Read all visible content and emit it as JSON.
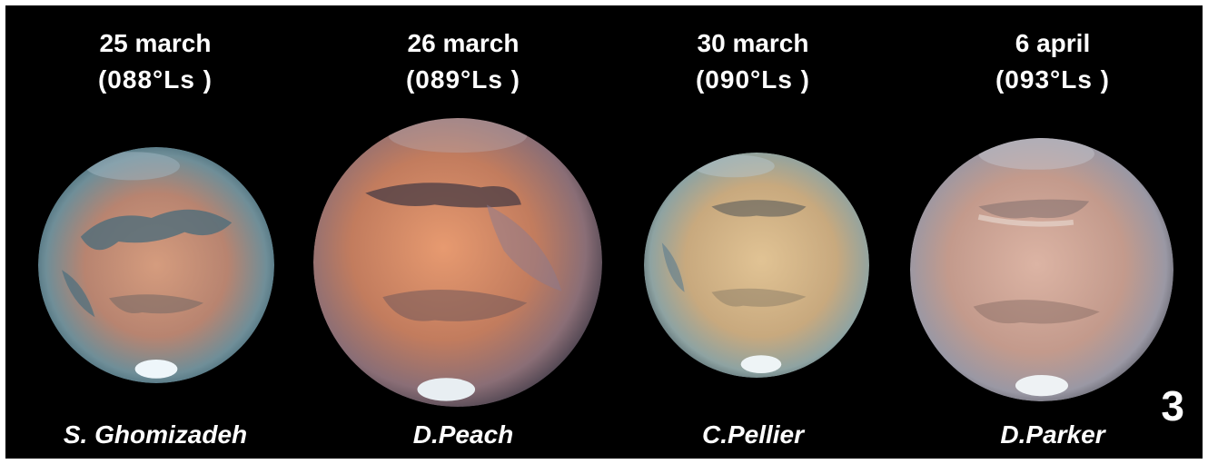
{
  "observations": [
    {
      "date": "25 march",
      "ls": "(088°Ls )",
      "observer": "S. Ghomizadeh",
      "disk_tint": "#c98f74",
      "limb_tint": "#5f8a9a"
    },
    {
      "date": "26 march",
      "ls": "(089°Ls )",
      "observer": "D.Peach",
      "disk_tint": "#d88a62",
      "limb_tint": "#8a7a86"
    },
    {
      "date": "30 march",
      "ls": "(090°Ls )",
      "observer": "C.Pellier",
      "disk_tint": "#d6b98a",
      "limb_tint": "#8aa3a6"
    },
    {
      "date": "6 april",
      "ls": "(093°Ls )",
      "observer": "D.Parker",
      "disk_tint": "#d2ad9e",
      "limb_tint": "#9a9aa4"
    }
  ],
  "panel_number": "3",
  "colors": {
    "background": "#000000",
    "text": "#ffffff"
  }
}
